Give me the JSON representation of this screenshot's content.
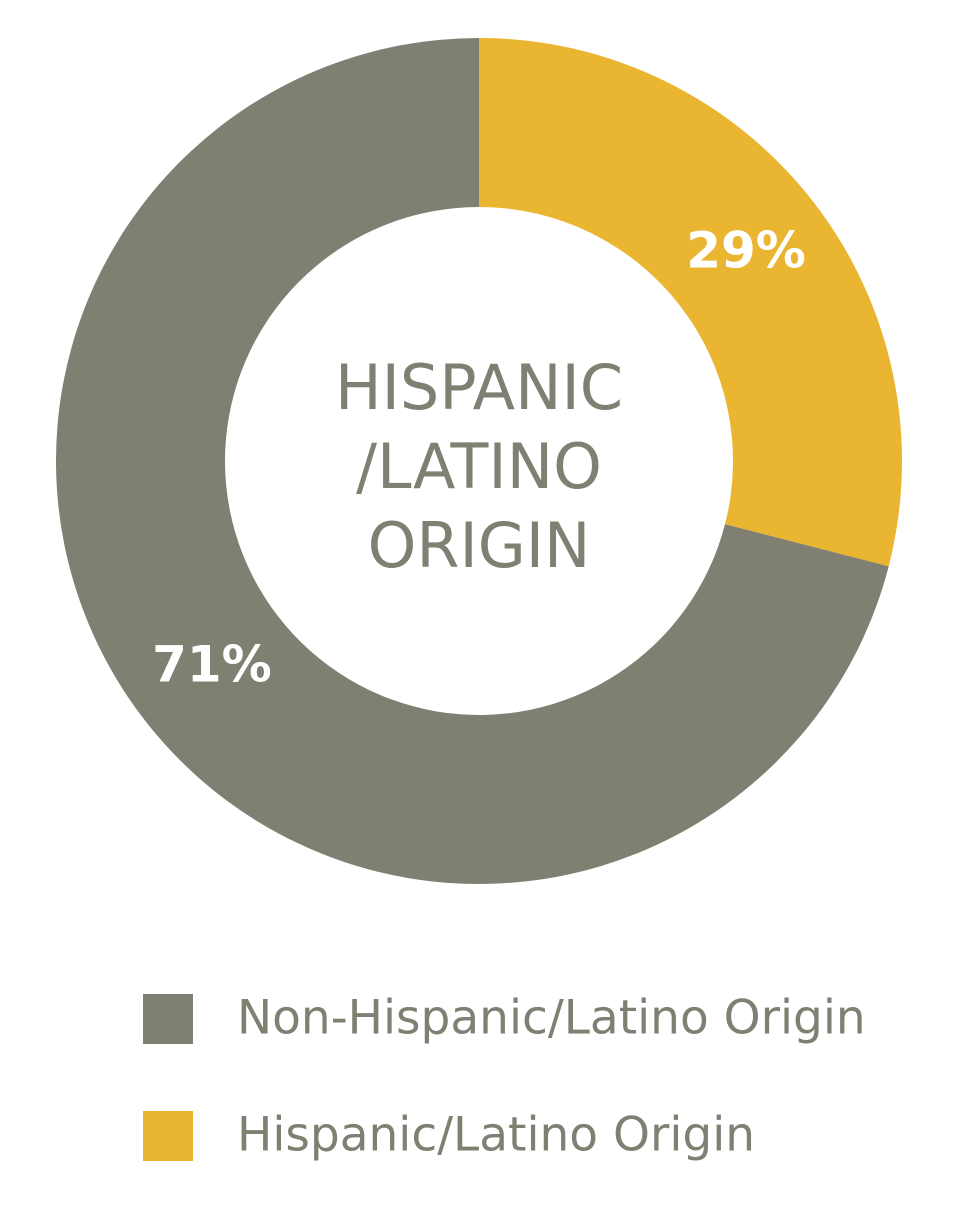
{
  "chart_data": {
    "type": "donut",
    "center_label": [
      "HISPANIC",
      "/LATINO",
      "ORIGIN"
    ],
    "categories": [
      "Non-Hispanic/Latino Origin",
      "Hispanic/Latino Origin"
    ],
    "values": [
      71,
      29
    ],
    "value_labels": [
      "71%",
      "29%"
    ],
    "colors": [
      "#7f7f72",
      "#eab530"
    ],
    "legend": "bottom"
  }
}
